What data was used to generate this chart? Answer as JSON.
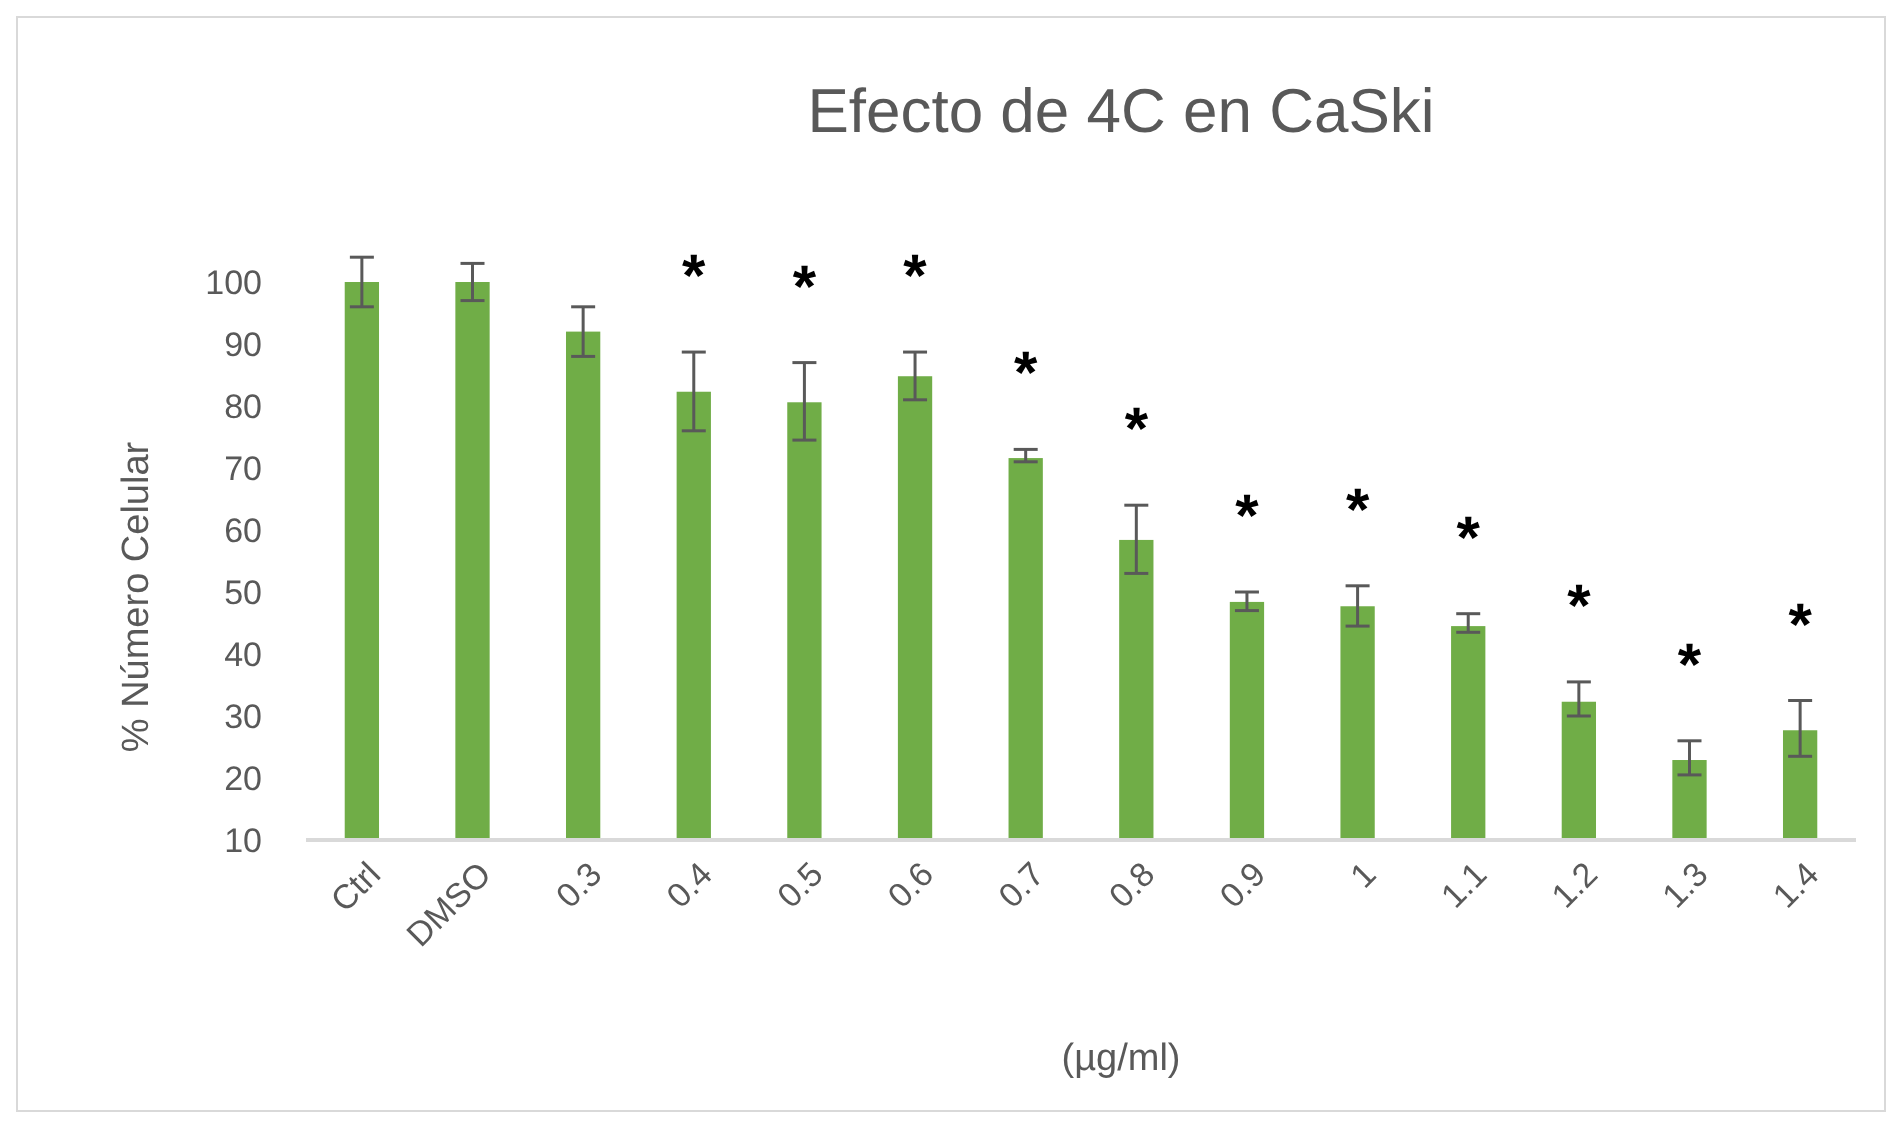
{
  "chart_data": {
    "type": "bar",
    "title": "Efecto de 4C en CaSki",
    "xlabel": "(µg/ml)",
    "ylabel": "% Número Celular",
    "categories": [
      "Ctrl",
      "DMSO",
      "0.3",
      "0.4",
      "0.5",
      "0.6",
      "0.7",
      "0.8",
      "0.9",
      "1",
      "1.1",
      "1.2",
      "1.3",
      "1.4"
    ],
    "values": [
      100,
      100,
      92,
      82.3,
      80.6,
      84.8,
      71.6,
      58.4,
      48.4,
      47.7,
      44.5,
      32.3,
      22.9,
      27.7
    ],
    "errors": [
      [
        96,
        104
      ],
      [
        97,
        103
      ],
      [
        88,
        96
      ],
      [
        76,
        88.7
      ],
      [
        74.5,
        87
      ],
      [
        81,
        88.7
      ],
      [
        71,
        73
      ],
      [
        53,
        64
      ],
      [
        47,
        50
      ],
      [
        44.5,
        51
      ],
      [
        43.5,
        46.5
      ],
      [
        30,
        35.5
      ],
      [
        20.5,
        26
      ],
      [
        23.5,
        32.5
      ]
    ],
    "color": "#70ad47",
    "ylim": [
      10,
      100
    ],
    "yticks": [
      10,
      20,
      30,
      40,
      50,
      60,
      70,
      80,
      90,
      100
    ],
    "annotations": [
      {
        "text": "*",
        "x": "0.4",
        "y": 82.3
      },
      {
        "text": "*",
        "x": "0.5",
        "y": 80.6
      },
      {
        "text": "*",
        "x": "0.6",
        "y": 84.8
      },
      {
        "text": "*",
        "x": "0.7",
        "y": 71.6
      },
      {
        "text": "*",
        "x": "0.8",
        "y": 58.4
      },
      {
        "text": "*",
        "x": "0.9",
        "y": 48.4
      },
      {
        "text": "*",
        "x": "1",
        "y": 47.7
      },
      {
        "text": "*",
        "x": "1.1",
        "y": 44.5
      },
      {
        "text": "*",
        "x": "1.2",
        "y": 32.3
      },
      {
        "text": "*",
        "x": "1.3",
        "y": 22.9
      },
      {
        "text": "*",
        "x": "1.4",
        "y": 27.7
      }
    ],
    "grid": false
  }
}
